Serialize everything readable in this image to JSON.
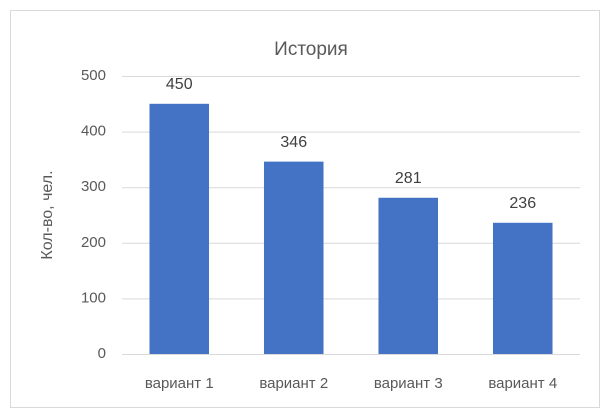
{
  "chart_data": {
    "type": "bar",
    "title": "История",
    "y_label": "Кол-во, чел.",
    "categories": [
      "вариант 1",
      "вариант 2",
      "вариант 3",
      "вариант 4"
    ],
    "values": [
      450,
      346,
      281,
      236
    ],
    "color": "#4472c4",
    "ylim": [
      0,
      500
    ],
    "yticks": [
      0,
      100,
      200,
      300,
      400,
      500
    ],
    "grid": true
  }
}
